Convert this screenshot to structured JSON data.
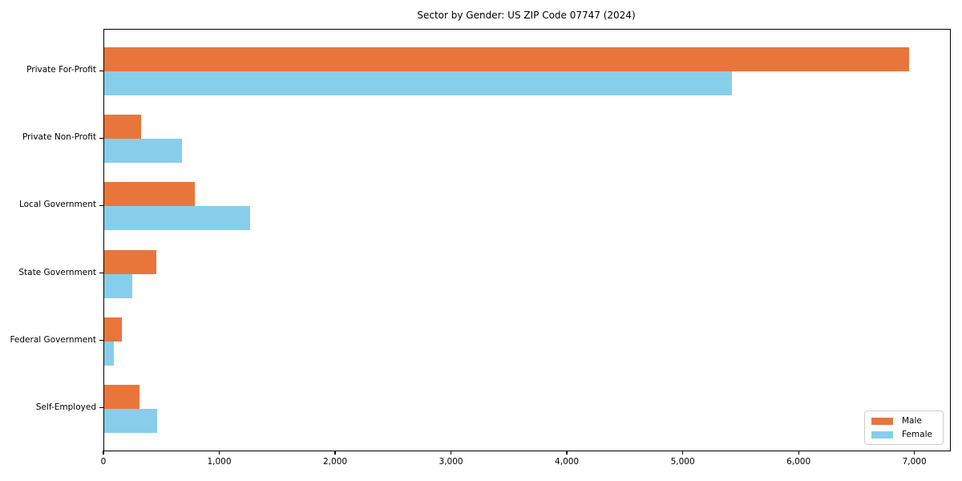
{
  "chart_data": {
    "type": "bar",
    "orientation": "horizontal",
    "title": "Sector by Gender: US ZIP Code 07747 (2024)",
    "categories": [
      "Private For-Profit",
      "Private Non-Profit",
      "Local Government",
      "State Government",
      "Federal Government",
      "Self-Employed"
    ],
    "series": [
      {
        "name": "Male",
        "color": "#e8763b",
        "values": [
          6950,
          320,
          780,
          450,
          150,
          305
        ]
      },
      {
        "name": "Female",
        "color": "#87ceeb",
        "values": [
          5420,
          670,
          1260,
          245,
          80,
          460
        ]
      }
    ],
    "xlabel": "",
    "ylabel": "",
    "xlim": [
      0,
      7300
    ],
    "xticks": [
      0,
      1000,
      2000,
      3000,
      4000,
      5000,
      6000,
      7000
    ],
    "xtick_labels": [
      "0",
      "1,000",
      "2,000",
      "3,000",
      "4,000",
      "5,000",
      "6,000",
      "7,000"
    ],
    "grid": false,
    "legend": {
      "position": "lower right"
    },
    "colors": {
      "male": "#e8763b",
      "female": "#87ceeb",
      "spine": "#000000",
      "legend_border": "#cccccc"
    }
  }
}
